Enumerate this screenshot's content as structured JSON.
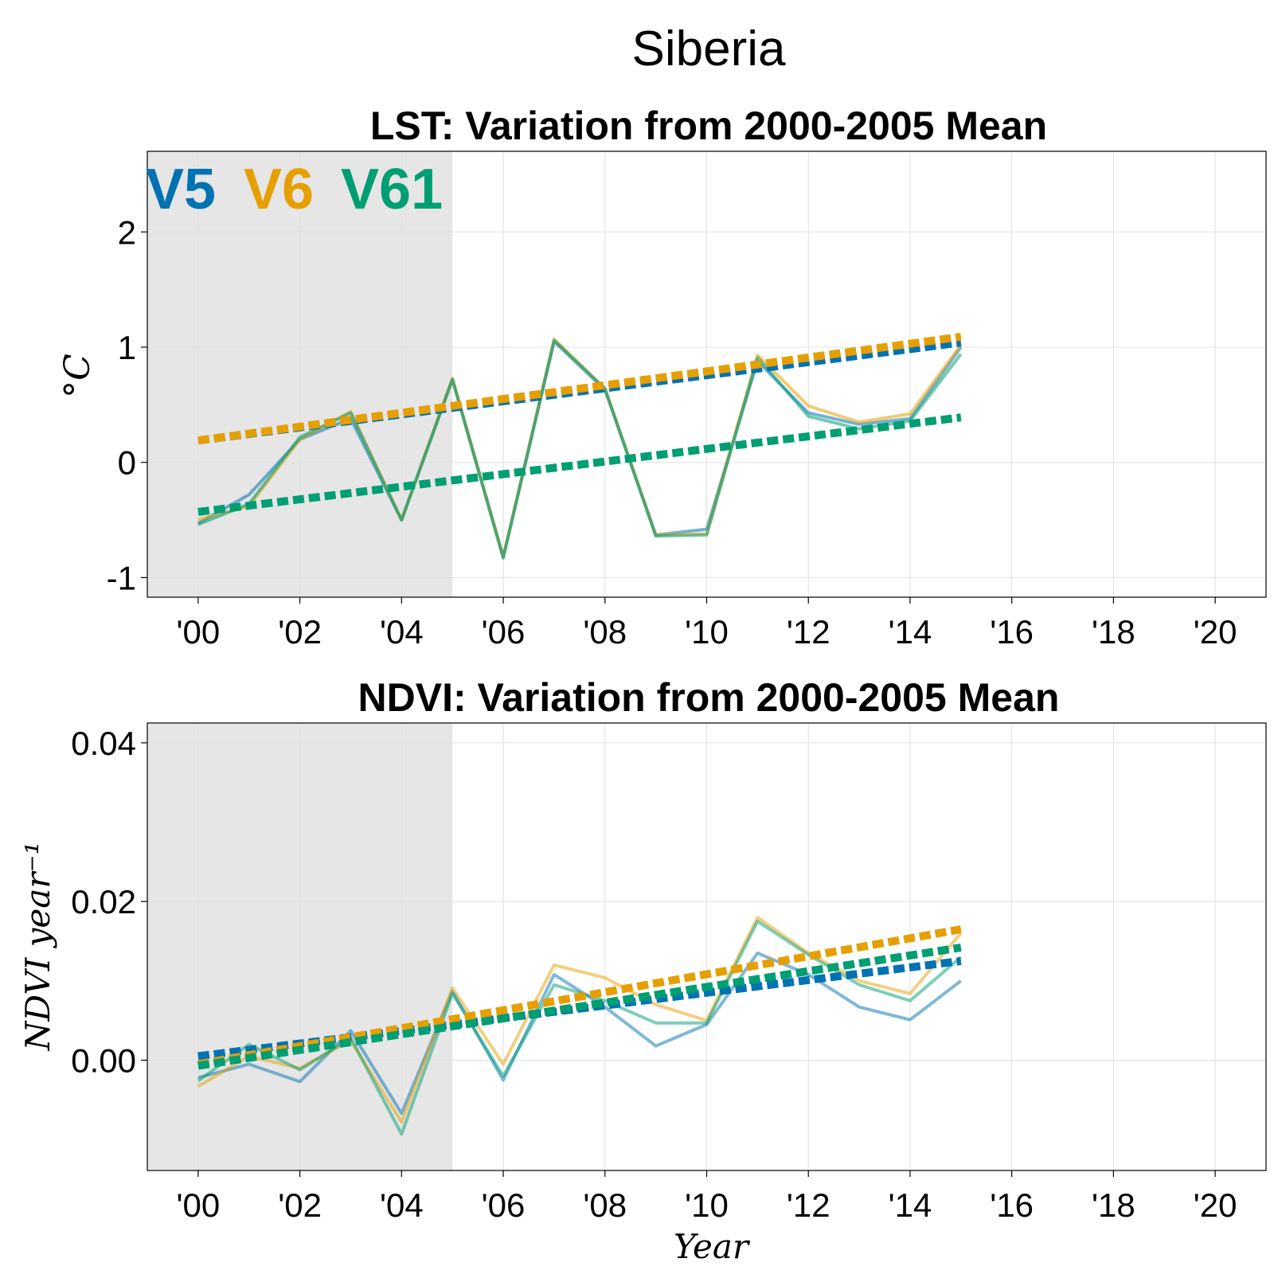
{
  "figure_title": "Siberia",
  "colors": {
    "V5": "#0072b2",
    "V6": "#e69f00",
    "V61": "#009e73",
    "shade": "#e6e6e6",
    "grid": "#e0e0e0"
  },
  "chart_data": [
    {
      "type": "line",
      "title": "LST: Variation from 2000-2005 Mean",
      "ylabel": "°C",
      "xlabel": "",
      "xlim": [
        1999,
        2021
      ],
      "ylim": [
        -1.17,
        2.7
      ],
      "x_ticks": [
        2000,
        2002,
        2004,
        2006,
        2008,
        2010,
        2012,
        2014,
        2016,
        2018,
        2020
      ],
      "x_tick_labels": [
        "'00",
        "'02",
        "'04",
        "'06",
        "'08",
        "'10",
        "'12",
        "'14",
        "'16",
        "'18",
        "'20"
      ],
      "y_ticks": [
        -1,
        0,
        1,
        2
      ],
      "y_tick_labels": [
        "-1",
        "0",
        "1",
        "2"
      ],
      "grid": true,
      "shaded_range": [
        1999,
        2005
      ],
      "legend": {
        "placement": "top-left",
        "entries": [
          "V5",
          "V6",
          "V61"
        ]
      },
      "x": [
        2000,
        2001,
        2002,
        2003,
        2004,
        2005,
        2006,
        2007,
        2008,
        2009,
        2010,
        2011,
        2012,
        2013,
        2014,
        2015
      ],
      "series": [
        {
          "name": "V5",
          "values": [
            -0.53,
            -0.28,
            0.2,
            0.38,
            -0.5,
            0.72,
            -0.82,
            1.05,
            0.63,
            -0.63,
            -0.58,
            0.88,
            0.43,
            0.33,
            0.38,
            1.0
          ]
        },
        {
          "name": "V6",
          "values": [
            -0.5,
            -0.38,
            0.2,
            0.44,
            -0.5,
            0.73,
            -0.82,
            1.07,
            0.64,
            -0.63,
            -0.62,
            0.93,
            0.49,
            0.35,
            0.42,
            1.02
          ]
        },
        {
          "name": "V61",
          "values": [
            -0.54,
            -0.36,
            0.22,
            0.43,
            -0.5,
            0.72,
            -0.83,
            1.06,
            0.64,
            -0.64,
            -0.63,
            0.91,
            0.4,
            0.29,
            0.36,
            0.94
          ]
        }
      ],
      "trends": [
        {
          "name": "V5",
          "x": [
            2000,
            2015
          ],
          "y": [
            0.19,
            1.04
          ]
        },
        {
          "name": "V6",
          "x": [
            2000,
            2015
          ],
          "y": [
            0.19,
            1.09
          ]
        },
        {
          "name": "V61",
          "x": [
            2000,
            2015
          ],
          "y": [
            -0.43,
            0.39
          ]
        }
      ]
    },
    {
      "type": "line",
      "title": "NDVI: Variation from 2000-2005 Mean",
      "ylabel": "NDVI year⁻¹",
      "xlabel": "Year",
      "xlim": [
        1999,
        2021
      ],
      "ylim": [
        -0.0139,
        0.0425
      ],
      "x_ticks": [
        2000,
        2002,
        2004,
        2006,
        2008,
        2010,
        2012,
        2014,
        2016,
        2018,
        2020
      ],
      "x_tick_labels": [
        "'00",
        "'02",
        "'04",
        "'06",
        "'08",
        "'10",
        "'12",
        "'14",
        "'16",
        "'18",
        "'20"
      ],
      "y_ticks": [
        0.0,
        0.02,
        0.04
      ],
      "y_tick_labels": [
        "0.00",
        "0.02",
        "0.04"
      ],
      "grid": true,
      "shaded_range": [
        1999,
        2005
      ],
      "x": [
        2000,
        2001,
        2002,
        2003,
        2004,
        2005,
        2006,
        2007,
        2008,
        2009,
        2010,
        2011,
        2012,
        2013,
        2014,
        2015
      ],
      "series": [
        {
          "name": "V5",
          "values": [
            -0.0022,
            -0.0005,
            -0.0027,
            0.0037,
            -0.0067,
            0.0087,
            -0.0025,
            0.0108,
            0.0067,
            0.0018,
            0.0045,
            0.0135,
            0.0108,
            0.0067,
            0.0051,
            0.01
          ]
        },
        {
          "name": "V6",
          "values": [
            -0.0033,
            0.0005,
            -0.001,
            0.0025,
            -0.0078,
            0.0091,
            -0.0005,
            0.012,
            0.0104,
            0.007,
            0.005,
            0.018,
            0.0135,
            0.01,
            0.0084,
            0.016
          ]
        },
        {
          "name": "V61",
          "values": [
            -0.0026,
            0.002,
            -0.0012,
            0.0028,
            -0.0093,
            0.0084,
            -0.002,
            0.0095,
            0.0075,
            0.0047,
            0.0047,
            0.0175,
            0.0133,
            0.0095,
            0.0075,
            0.013
          ]
        }
      ],
      "trends": [
        {
          "name": "V5",
          "x": [
            2000,
            2015
          ],
          "y": [
            0.0005,
            0.0125
          ]
        },
        {
          "name": "V6",
          "x": [
            2000,
            2015
          ],
          "y": [
            -0.0005,
            0.0165
          ]
        },
        {
          "name": "V61",
          "x": [
            2000,
            2015
          ],
          "y": [
            -0.0007,
            0.0142
          ]
        }
      ]
    }
  ]
}
